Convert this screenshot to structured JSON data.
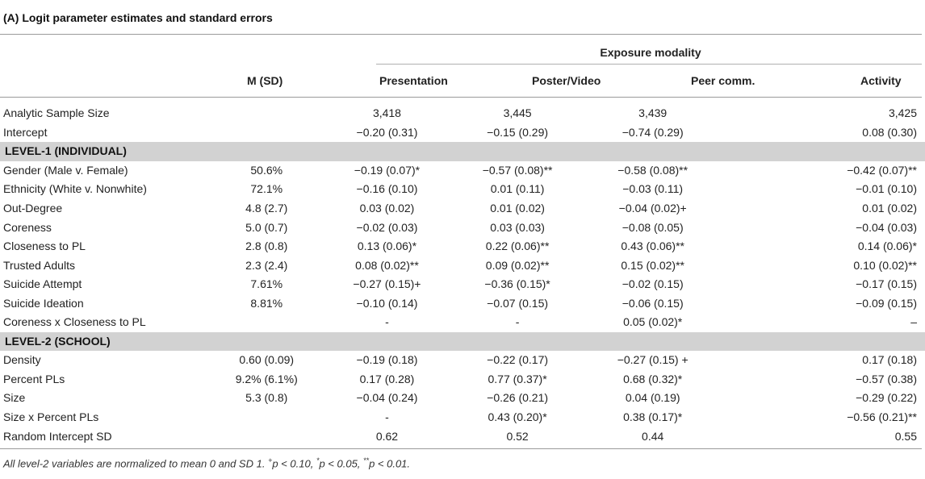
{
  "caption": "(A) Logit parameter estimates and standard errors",
  "header": {
    "group": "Exposure modality",
    "columns": [
      "M (SD)",
      "Presentation",
      "Poster/Video",
      "Peer comm.",
      "Activity"
    ]
  },
  "rows": [
    {
      "label": "Analytic Sample Size",
      "cells": [
        "",
        "3,418",
        "3,445",
        "3,439",
        "3,425"
      ]
    },
    {
      "label": "Intercept",
      "cells": [
        "",
        "−0.20 (0.31)",
        "−0.15 (0.29)",
        "−0.74 (0.29)",
        "0.08 (0.30)"
      ]
    },
    {
      "section": "LEVEL-1 (INDIVIDUAL)"
    },
    {
      "label": "Gender (Male v. Female)",
      "cells": [
        "50.6%",
        "−0.19 (0.07)*",
        "−0.57 (0.08)**",
        "−0.58 (0.08)**",
        "−0.42 (0.07)**"
      ]
    },
    {
      "label": "Ethnicity (White v. Nonwhite)",
      "cells": [
        "72.1%",
        "−0.16 (0.10)",
        "0.01 (0.11)",
        "−0.03 (0.11)",
        "−0.01 (0.10)"
      ]
    },
    {
      "label": "Out-Degree",
      "cells": [
        "4.8 (2.7)",
        "0.03 (0.02)",
        "0.01 (0.02)",
        "−0.04 (0.02)+",
        "0.01 (0.02)"
      ]
    },
    {
      "label": "Coreness",
      "cells": [
        "5.0 (0.7)",
        "−0.02 (0.03)",
        "0.03 (0.03)",
        "−0.08 (0.05)",
        "−0.04 (0.03)"
      ]
    },
    {
      "label": "Closeness to PL",
      "cells": [
        "2.8 (0.8)",
        "0.13 (0.06)*",
        "0.22 (0.06)**",
        "0.43 (0.06)**",
        "0.14 (0.06)*"
      ]
    },
    {
      "label": "Trusted Adults",
      "cells": [
        "2.3 (2.4)",
        "0.08 (0.02)**",
        "0.09 (0.02)**",
        "0.15 (0.02)**",
        "0.10 (0.02)**"
      ]
    },
    {
      "label": "Suicide Attempt",
      "cells": [
        "7.61%",
        "−0.27 (0.15)+",
        "−0.36 (0.15)*",
        "−0.02 (0.15)",
        "−0.17 (0.15)"
      ]
    },
    {
      "label": "Suicide Ideation",
      "cells": [
        "8.81%",
        "−0.10 (0.14)",
        "−0.07 (0.15)",
        "−0.06 (0.15)",
        "−0.09 (0.15)"
      ]
    },
    {
      "label": "Coreness x Closeness to PL",
      "cells": [
        "",
        "-",
        "-",
        "0.05 (0.02)*",
        "–"
      ]
    },
    {
      "section": "LEVEL-2 (SCHOOL)"
    },
    {
      "label": "Density",
      "cells": [
        "0.60 (0.09)",
        "−0.19 (0.18)",
        "−0.22 (0.17)",
        "−0.27 (0.15) +",
        "0.17 (0.18)"
      ]
    },
    {
      "label": "Percent PLs",
      "cells": [
        "9.2% (6.1%)",
        "0.17 (0.28)",
        "0.77 (0.37)*",
        "0.68 (0.32)*",
        "−0.57 (0.38)"
      ]
    },
    {
      "label": "Size",
      "cells": [
        "5.3 (0.8)",
        "−0.04 (0.24)",
        "−0.26 (0.21)",
        "0.04 (0.19)",
        "−0.29 (0.22)"
      ]
    },
    {
      "label": "Size x Percent PLs",
      "cells": [
        "",
        "-",
        "0.43 (0.20)*",
        "0.38 (0.17)*",
        "−0.56 (0.21)**"
      ]
    },
    {
      "label": "Random Intercept SD",
      "cells": [
        "",
        "0.62",
        "0.52",
        "0.44",
        "0.55"
      ]
    }
  ],
  "footnote": {
    "text": "All level-2 variables are normalized to mean 0 and SD 1.",
    "plus_sym": "+",
    "plus_text": "p < 0.10,",
    "one_sym": "*",
    "one_text": "p < 0.05,",
    "two_sym": "**",
    "two_text": "p < 0.01."
  }
}
